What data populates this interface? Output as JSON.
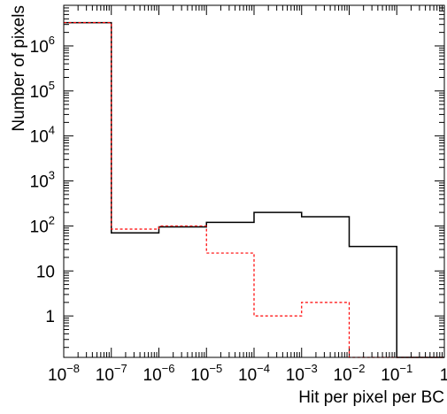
{
  "chart_data": {
    "type": "step-histogram",
    "xlabel": "Hit per pixel per BC",
    "ylabel": "Number of pixels",
    "x_scale": "log",
    "y_scale": "log",
    "xlim": [
      1e-08,
      1
    ],
    "ylim": [
      0.12,
      8000000
    ],
    "x_tick_labels": [
      {
        "base": "10",
        "exp": "−8"
      },
      {
        "base": "10",
        "exp": "−7"
      },
      {
        "base": "10",
        "exp": "−6"
      },
      {
        "base": "10",
        "exp": "−5"
      },
      {
        "base": "10",
        "exp": "−4"
      },
      {
        "base": "10",
        "exp": "−3"
      },
      {
        "base": "10",
        "exp": "−2"
      },
      {
        "base": "10",
        "exp": "−1"
      },
      {
        "base": "1",
        "exp": ""
      }
    ],
    "y_tick_labels": [
      {
        "base": "1",
        "exp": ""
      },
      {
        "base": "10",
        "exp": ""
      },
      {
        "base": "10",
        "exp": "2"
      },
      {
        "base": "10",
        "exp": "3"
      },
      {
        "base": "10",
        "exp": "4"
      },
      {
        "base": "10",
        "exp": "5"
      },
      {
        "base": "10",
        "exp": "6"
      }
    ],
    "bin_edges": [
      1e-08,
      1e-07,
      1e-06,
      1e-05,
      0.0001,
      0.001,
      0.01,
      0.1,
      1
    ],
    "series": [
      {
        "color": "#000000",
        "line_style": "solid",
        "values": [
          3300000,
          70,
          95,
          120,
          200,
          160,
          35,
          0
        ]
      },
      {
        "color": "#ff0000",
        "line_style": "dashed",
        "values": [
          3300000,
          85,
          100,
          25,
          1,
          2,
          0,
          0
        ]
      }
    ]
  }
}
